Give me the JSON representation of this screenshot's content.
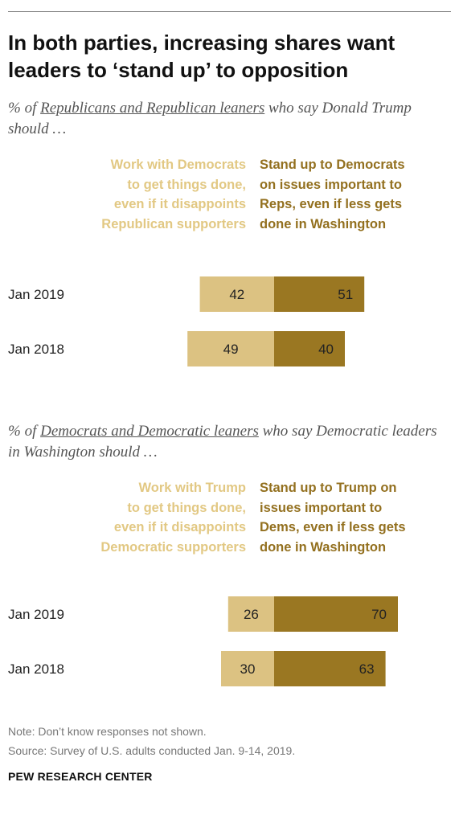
{
  "title": "In both parties, increasing shares want leaders to ‘stand up’ to opposition",
  "colors": {
    "work_with": "#dcc282",
    "stand_up": "#9a7722",
    "text": "#222222"
  },
  "chart_data": [
    {
      "type": "bar",
      "stacked": "diverging",
      "subtitle_prefix": "% of ",
      "subtitle_group": "Republicans and Republican leaners",
      "subtitle_suffix": " who say Donald Trump should …",
      "legend": {
        "left": [
          "Work with Democrats",
          "to get things done,",
          "even if it disappoints",
          "Republican supporters"
        ],
        "right": [
          "Stand up to Democrats",
          "on issues important to",
          "Reps, even if less gets",
          "done in Washington"
        ]
      },
      "categories": [
        "Jan 2019",
        "Jan 2018"
      ],
      "series": [
        {
          "name": "Work with Democrats to get things done, even if it disappoints Republican supporters",
          "values": [
            42,
            49
          ]
        },
        {
          "name": "Stand up to Democrats on issues important to Reps, even if less gets done in Washington",
          "values": [
            51,
            40
          ]
        }
      ]
    },
    {
      "type": "bar",
      "stacked": "diverging",
      "subtitle_prefix": "% of ",
      "subtitle_group": "Democrats and Democratic leaners",
      "subtitle_suffix": " who say Democratic leaders in Washington should …",
      "legend": {
        "left": [
          "Work with Trump",
          "to get things done,",
          "even if it disappoints",
          "Democratic supporters"
        ],
        "right": [
          "Stand up to Trump on",
          "issues important to",
          "Dems, even if less gets",
          "done in Washington"
        ]
      },
      "categories": [
        "Jan 2019",
        "Jan 2018"
      ],
      "series": [
        {
          "name": "Work with Trump to get things done, even if it disappoints Democratic supporters",
          "values": [
            26,
            30
          ]
        },
        {
          "name": "Stand up to Trump on issues important to Dems, even if less gets done in Washington",
          "values": [
            70,
            63
          ]
        }
      ]
    }
  ],
  "note": "Note: Don’t know responses not shown.",
  "source": "Source: Survey of U.S. adults conducted Jan. 9-14, 2019.",
  "brand": "PEW RESEARCH CENTER"
}
